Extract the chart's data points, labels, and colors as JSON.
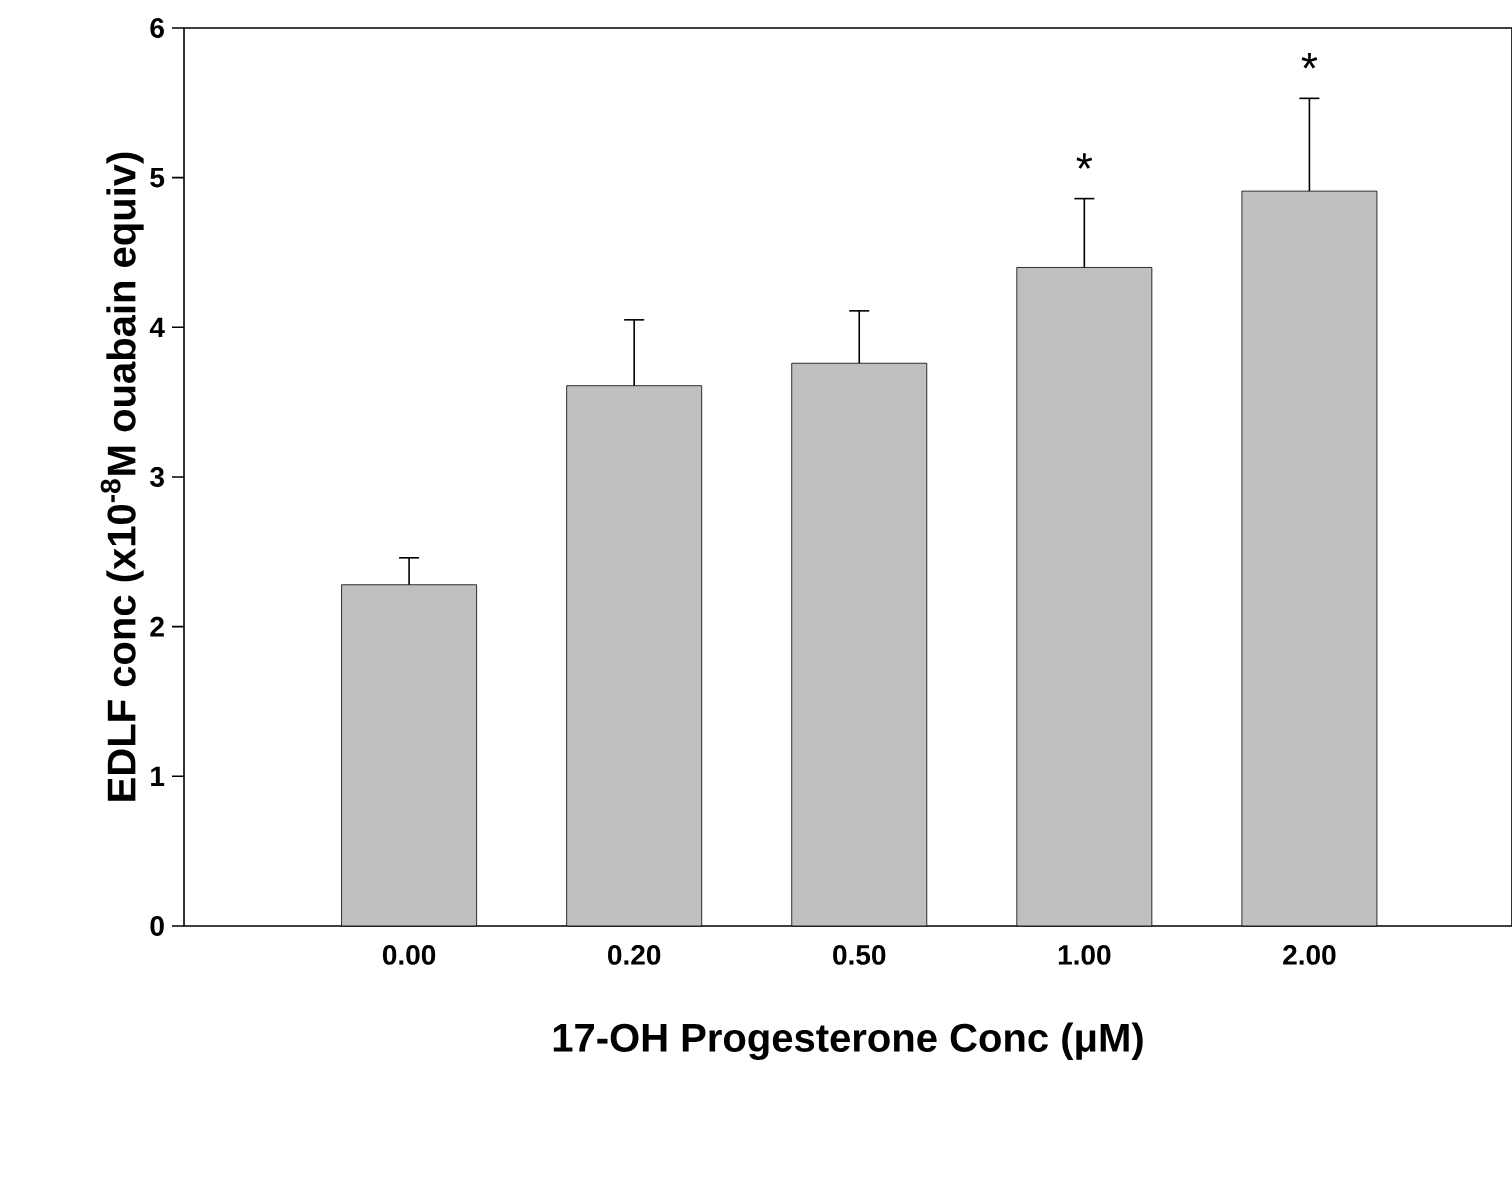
{
  "chart_data": {
    "type": "bar",
    "xlabel": "17-OH Progesterone Conc (μM)",
    "ylabel": "EDLF conc (x10$^{-8}$M ouabain equiv)",
    "categories": [
      "0.00",
      "0.20",
      "0.50",
      "1.00",
      "2.00"
    ],
    "values": [
      2.28,
      3.61,
      3.76,
      4.4,
      4.91
    ],
    "errors": [
      [
        2.28,
        2.46
      ],
      [
        3.61,
        4.05
      ],
      [
        3.76,
        4.11
      ],
      [
        4.4,
        4.86
      ],
      [
        4.91,
        5.53
      ]
    ],
    "color": "#c0c0c0",
    "ylim": [
      0,
      6
    ],
    "yticks": [
      0,
      1,
      2,
      3,
      4,
      5,
      6
    ],
    "annotations": [
      {
        "text": "*",
        "x": "1.00",
        "y": 4.86
      },
      {
        "text": "*",
        "x": "2.00",
        "y": 5.53
      }
    ],
    "grid": false
  }
}
